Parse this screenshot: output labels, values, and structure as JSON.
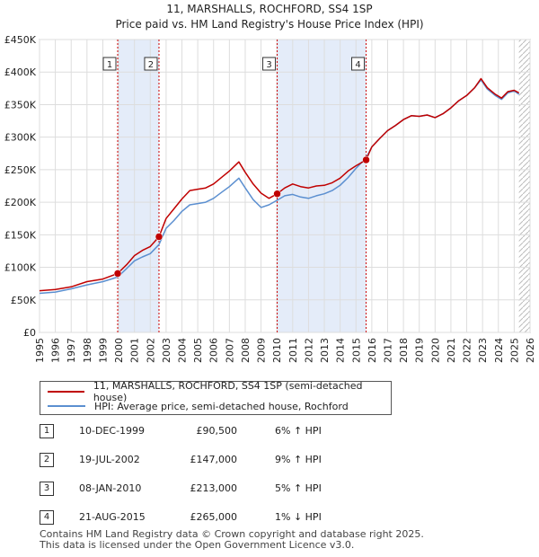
{
  "title": "11, MARSHALLS, ROCHFORD, SS4 1SP",
  "subtitle": "Price paid vs. HM Land Registry's House Price Index (HPI)",
  "colors": {
    "property": "#c00000",
    "hpi": "#5b8fd0",
    "shade": "#dde7f7",
    "grid": "#dddddd",
    "marker_line": "#cc0000"
  },
  "chart_data": {
    "type": "line",
    "xlim": [
      1995,
      2026
    ],
    "ylim": [
      0,
      450000
    ],
    "y_ticks": [
      0,
      50000,
      100000,
      150000,
      200000,
      250000,
      300000,
      350000,
      400000,
      450000
    ],
    "y_tick_labels": [
      "£0",
      "£50K",
      "£100K",
      "£150K",
      "£200K",
      "£250K",
      "£300K",
      "£350K",
      "£400K",
      "£450K"
    ],
    "x_ticks": [
      1995,
      1996,
      1997,
      1998,
      1999,
      2000,
      2001,
      2002,
      2003,
      2004,
      2005,
      2006,
      2007,
      2008,
      2009,
      2010,
      2011,
      2012,
      2013,
      2014,
      2015,
      2016,
      2017,
      2018,
      2019,
      2020,
      2021,
      2022,
      2023,
      2024,
      2025,
      2026
    ],
    "shaded_ranges": [
      [
        1999.94,
        2002.55
      ],
      [
        2010.02,
        2015.64
      ]
    ],
    "series": [
      {
        "name": "11, MARSHALLS, ROCHFORD, SS4 1SP (semi-detached house)",
        "color": "#c00000",
        "x": [
          1995,
          1996,
          1997,
          1998,
          1999,
          1999.94,
          2000.5,
          2001,
          2001.5,
          2002,
          2002.55,
          2003,
          2003.5,
          2004,
          2004.5,
          2005,
          2005.5,
          2006,
          2006.5,
          2007,
          2007.6,
          2008,
          2008.5,
          2009,
          2009.5,
          2010.02,
          2010.5,
          2011,
          2011.5,
          2012,
          2012.5,
          2013,
          2013.5,
          2014,
          2014.5,
          2015,
          2015.64,
          2016,
          2016.5,
          2017,
          2017.5,
          2018,
          2018.5,
          2019,
          2019.5,
          2020,
          2020.5,
          2021,
          2021.5,
          2022,
          2022.5,
          2022.9,
          2023.3,
          2023.8,
          2024.2,
          2024.6,
          2025,
          2025.3
        ],
        "y": [
          64000,
          66000,
          70000,
          78000,
          82000,
          90500,
          104000,
          118000,
          126000,
          132000,
          147000,
          175000,
          190000,
          205000,
          218000,
          220000,
          222000,
          228000,
          238000,
          248000,
          262000,
          246000,
          228000,
          214000,
          206000,
          213000,
          222000,
          228000,
          224000,
          222000,
          225000,
          226000,
          230000,
          237000,
          248000,
          256000,
          265000,
          285000,
          298000,
          310000,
          318000,
          327000,
          333000,
          332000,
          334000,
          330000,
          336000,
          345000,
          356000,
          364000,
          376000,
          390000,
          376000,
          366000,
          360000,
          370000,
          372000,
          368000
        ]
      },
      {
        "name": "HPI: Average price, semi-detached house, Rochford",
        "color": "#5b8fd0",
        "x": [
          1995,
          1996,
          1997,
          1998,
          1999,
          1999.94,
          2000.5,
          2001,
          2001.5,
          2002,
          2002.55,
          2003,
          2003.5,
          2004,
          2004.5,
          2005,
          2005.5,
          2006,
          2006.5,
          2007,
          2007.6,
          2008,
          2008.5,
          2009,
          2009.5,
          2010.02,
          2010.5,
          2011,
          2011.5,
          2012,
          2012.5,
          2013,
          2013.5,
          2014,
          2014.5,
          2015,
          2015.64,
          2016,
          2016.5,
          2017,
          2017.5,
          2018,
          2018.5,
          2019,
          2019.5,
          2020,
          2020.5,
          2021,
          2021.5,
          2022,
          2022.5,
          2022.9,
          2023.3,
          2023.8,
          2024.2,
          2024.6,
          2025,
          2025.3
        ],
        "y": [
          60000,
          62000,
          67000,
          73000,
          78000,
          85000,
          98000,
          110000,
          116000,
          121000,
          135000,
          160000,
          172000,
          186000,
          196000,
          198000,
          200000,
          206000,
          215000,
          224000,
          237000,
          222000,
          204000,
          192000,
          196000,
          203000,
          210000,
          212000,
          208000,
          206000,
          210000,
          213000,
          218000,
          226000,
          238000,
          252000,
          268000,
          285000,
          298000,
          310000,
          318000,
          327000,
          333000,
          332000,
          334000,
          330000,
          336000,
          345000,
          356000,
          364000,
          376000,
          388000,
          374000,
          364000,
          358000,
          368000,
          371000,
          366000
        ]
      }
    ],
    "sales_points": [
      {
        "label": "1",
        "x": 1999.94,
        "y": 90500
      },
      {
        "label": "2",
        "x": 2002.55,
        "y": 147000
      },
      {
        "label": "3",
        "x": 2010.02,
        "y": 213000
      },
      {
        "label": "4",
        "x": 2015.64,
        "y": 265000
      }
    ],
    "future_marker_x": 2025.3
  },
  "legend": {
    "property": "11, MARSHALLS, ROCHFORD, SS4 1SP (semi-detached house)",
    "hpi": "HPI: Average price, semi-detached house, Rochford"
  },
  "sales": [
    {
      "num": "1",
      "date": "10-DEC-1999",
      "price": "£90,500",
      "delta": "6% ↑ HPI"
    },
    {
      "num": "2",
      "date": "19-JUL-2002",
      "price": "£147,000",
      "delta": "9% ↑ HPI"
    },
    {
      "num": "3",
      "date": "08-JAN-2010",
      "price": "£213,000",
      "delta": "5% ↑ HPI"
    },
    {
      "num": "4",
      "date": "21-AUG-2015",
      "price": "£265,000",
      "delta": "1% ↓ HPI"
    }
  ],
  "footer": {
    "line1": "Contains HM Land Registry data © Crown copyright and database right 2025.",
    "line2": "This data is licensed under the Open Government Licence v3.0."
  }
}
